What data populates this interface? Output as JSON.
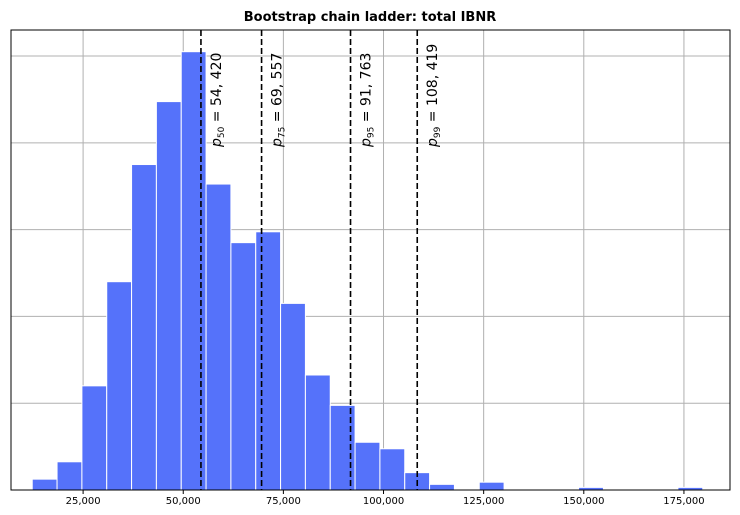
{
  "chart_data": {
    "type": "bar",
    "title": "Bootstrap chain ladder: total IBNR",
    "xlabel": "",
    "ylabel": "",
    "xlim": [
      7000,
      186500
    ],
    "ylim": [
      0,
      106
    ],
    "bar_color": "#5572fa",
    "grid": true,
    "x_ticks": [
      25000,
      50000,
      75000,
      100000,
      125000,
      150000,
      175000
    ],
    "x_tick_labels": [
      "25,000",
      "50,000",
      "75,000",
      "100,000",
      "125,000",
      "150,000",
      "175,000"
    ],
    "bins": [
      {
        "x0": 12300,
        "x1": 18500,
        "count": 2.5
      },
      {
        "x0": 18500,
        "x1": 24700,
        "count": 6.5
      },
      {
        "x0": 24700,
        "x1": 30900,
        "count": 24
      },
      {
        "x0": 30900,
        "x1": 37100,
        "count": 48
      },
      {
        "x0": 37100,
        "x1": 43300,
        "count": 75
      },
      {
        "x0": 43300,
        "x1": 49500,
        "count": 89.5
      },
      {
        "x0": 49500,
        "x1": 55700,
        "count": 101
      },
      {
        "x0": 55700,
        "x1": 61900,
        "count": 70.5
      },
      {
        "x0": 61900,
        "x1": 68100,
        "count": 57
      },
      {
        "x0": 68100,
        "x1": 74300,
        "count": 59.5
      },
      {
        "x0": 74300,
        "x1": 80500,
        "count": 43
      },
      {
        "x0": 80500,
        "x1": 86700,
        "count": 26.5
      },
      {
        "x0": 86700,
        "x1": 92900,
        "count": 19.5
      },
      {
        "x0": 92900,
        "x1": 99100,
        "count": 11
      },
      {
        "x0": 99100,
        "x1": 105300,
        "count": 9.5
      },
      {
        "x0": 105300,
        "x1": 111500,
        "count": 4
      },
      {
        "x0": 111500,
        "x1": 117700,
        "count": 1.3
      },
      {
        "x0": 117700,
        "x1": 123900,
        "count": 0
      },
      {
        "x0": 123900,
        "x1": 130100,
        "count": 1.8
      },
      {
        "x0": 130100,
        "x1": 136300,
        "count": 0
      },
      {
        "x0": 136300,
        "x1": 142500,
        "count": 0
      },
      {
        "x0": 142500,
        "x1": 148700,
        "count": 0
      },
      {
        "x0": 148700,
        "x1": 154900,
        "count": 0.6
      },
      {
        "x0": 154900,
        "x1": 161100,
        "count": 0
      },
      {
        "x0": 161100,
        "x1": 167300,
        "count": 0
      },
      {
        "x0": 167300,
        "x1": 173500,
        "count": 0
      },
      {
        "x0": 173500,
        "x1": 179700,
        "count": 0.6
      }
    ],
    "percentiles": [
      {
        "sub": "50",
        "value": 54420,
        "value_text": "54, 420"
      },
      {
        "sub": "75",
        "value": 69557,
        "value_text": "69, 557"
      },
      {
        "sub": "95",
        "value": 91763,
        "value_text": "91, 763"
      },
      {
        "sub": "99",
        "value": 108419,
        "value_text": "108, 419"
      }
    ]
  }
}
